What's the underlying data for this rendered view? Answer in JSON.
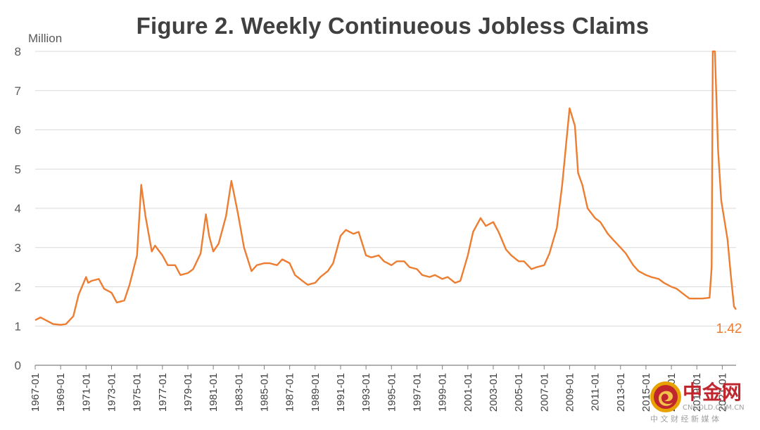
{
  "chart_data": {
    "type": "line",
    "title": "Figure 2. Weekly Continueous Jobless Claims",
    "ylabel": "Million",
    "xlabel": "",
    "ylim": [
      0,
      8
    ],
    "y_ticks": [
      "0",
      "1",
      "2",
      "3",
      "4",
      "5",
      "6",
      "7",
      "8"
    ],
    "x_ticks": [
      "1967-01",
      "1969-01",
      "1971-01",
      "1973-01",
      "1975-01",
      "1977-01",
      "1979-01",
      "1981-01",
      "1983-01",
      "1985-01",
      "1987-01",
      "1989-01",
      "1991-01",
      "1993-01",
      "1995-01",
      "1997-01",
      "1999-01",
      "2001-01",
      "2003-01",
      "2005-01",
      "2007-01",
      "2009-01",
      "2011-01",
      "2013-01",
      "2015-01",
      "2017-01",
      "2019-01",
      "2021-01"
    ],
    "grid": true,
    "line_color": "#ED7D31",
    "end_label": "1.42",
    "series": [
      {
        "x": [
          "1967-01",
          "1967-06",
          "1968-01",
          "1968-06",
          "1969-01",
          "1969-06",
          "1970-01",
          "1970-06",
          "1971-01",
          "1971-03",
          "1971-06",
          "1972-01",
          "1972-06",
          "1973-01",
          "1973-06",
          "1974-01",
          "1974-06",
          "1975-01",
          "1975-05",
          "1975-09",
          "1976-03",
          "1976-06",
          "1977-01",
          "1977-06",
          "1978-01",
          "1978-06",
          "1979-01",
          "1979-06",
          "1980-01",
          "1980-06",
          "1980-09",
          "1981-01",
          "1981-06",
          "1982-01",
          "1982-06",
          "1982-12",
          "1983-06",
          "1984-01",
          "1984-06",
          "1985-01",
          "1985-06",
          "1986-01",
          "1986-06",
          "1987-01",
          "1987-06",
          "1988-01",
          "1988-06",
          "1989-01",
          "1989-06",
          "1990-01",
          "1990-06",
          "1991-01",
          "1991-06",
          "1992-01",
          "1992-06",
          "1993-01",
          "1993-06",
          "1994-01",
          "1994-06",
          "1995-01",
          "1995-06",
          "1996-01",
          "1996-06",
          "1997-01",
          "1997-06",
          "1998-01",
          "1998-06",
          "1999-01",
          "1999-06",
          "2000-01",
          "2000-06",
          "2001-01",
          "2001-06",
          "2002-01",
          "2002-06",
          "2003-01",
          "2003-06",
          "2004-01",
          "2004-06",
          "2005-01",
          "2005-06",
          "2006-01",
          "2006-06",
          "2007-01",
          "2007-06",
          "2008-01",
          "2008-06",
          "2009-01",
          "2009-06",
          "2009-09",
          "2010-01",
          "2010-06",
          "2011-01",
          "2011-06",
          "2012-01",
          "2012-06",
          "2013-01",
          "2013-06",
          "2014-01",
          "2014-06",
          "2015-01",
          "2015-06",
          "2016-01",
          "2016-06",
          "2017-01",
          "2017-06",
          "2018-01",
          "2018-06",
          "2019-01",
          "2019-06",
          "2020-01",
          "2020-03",
          "2020-04",
          "2020-05",
          "2020-06",
          "2020-09",
          "2020-12",
          "2021-03",
          "2021-06",
          "2021-09",
          "2021-12",
          "2022-02"
        ],
        "values": [
          1.15,
          1.22,
          1.12,
          1.05,
          1.03,
          1.05,
          1.25,
          1.8,
          2.25,
          2.1,
          2.15,
          2.2,
          1.95,
          1.85,
          1.6,
          1.65,
          2.05,
          2.8,
          4.6,
          3.8,
          2.9,
          3.05,
          2.8,
          2.55,
          2.55,
          2.3,
          2.35,
          2.45,
          2.85,
          3.85,
          3.3,
          2.9,
          3.1,
          3.8,
          4.7,
          3.9,
          3.0,
          2.4,
          2.55,
          2.6,
          2.6,
          2.55,
          2.7,
          2.6,
          2.3,
          2.15,
          2.05,
          2.1,
          2.25,
          2.4,
          2.6,
          3.3,
          3.45,
          3.35,
          3.4,
          2.8,
          2.75,
          2.8,
          2.65,
          2.55,
          2.65,
          2.65,
          2.5,
          2.45,
          2.3,
          2.25,
          2.3,
          2.2,
          2.25,
          2.1,
          2.15,
          2.8,
          3.4,
          3.75,
          3.55,
          3.65,
          3.4,
          2.95,
          2.8,
          2.65,
          2.65,
          2.45,
          2.5,
          2.55,
          2.85,
          3.5,
          4.6,
          6.55,
          6.1,
          4.9,
          4.6,
          4.0,
          3.75,
          3.65,
          3.35,
          3.2,
          3.0,
          2.85,
          2.55,
          2.4,
          2.3,
          2.25,
          2.2,
          2.1,
          2.0,
          1.95,
          1.8,
          1.7,
          1.7,
          1.7,
          1.72,
          2.5,
          8.5,
          8.5,
          8.5,
          5.5,
          4.2,
          3.7,
          3.2,
          2.3,
          1.5,
          1.42
        ]
      }
    ]
  },
  "watermark": {
    "logo_text": "中金网",
    "domain": "CNGOLD.COM.CN",
    "subtitle": "中 文 财 经 新 媒 体"
  }
}
